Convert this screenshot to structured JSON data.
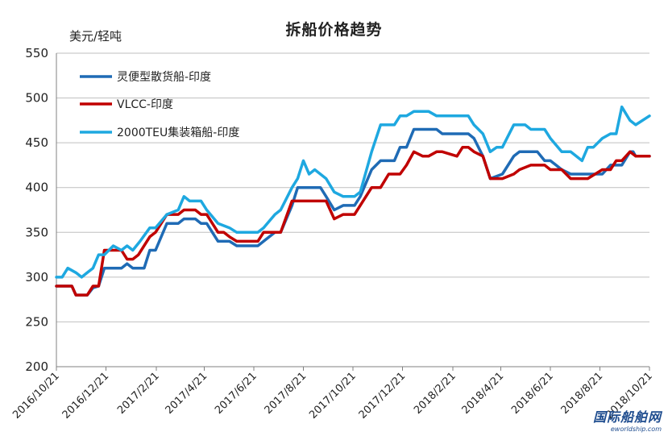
{
  "chart_data": {
    "type": "line",
    "title": "拆船价格趋势",
    "ylabel": "美元/轻吨",
    "xlabel": "",
    "ylim": [
      200,
      550
    ],
    "yticks": [
      200,
      250,
      300,
      350,
      400,
      450,
      500,
      550
    ],
    "xlim": [
      "2016-10-21",
      "2018-10-21"
    ],
    "x_tick_labels": [
      "2016/10/21",
      "2016/12/21",
      "2017/2/21",
      "2017/4/21",
      "2017/6/21",
      "2017/8/21",
      "2017/10/21",
      "2017/12/21",
      "2018/2/21",
      "2018/4/21",
      "2018/6/21",
      "2018/8/21",
      "2018/10/21"
    ],
    "x_tick_dates": [
      "2016-10-21",
      "2016-12-21",
      "2017-02-21",
      "2017-04-21",
      "2017-06-21",
      "2017-08-21",
      "2017-10-21",
      "2017-12-21",
      "2018-02-21",
      "2018-04-21",
      "2018-06-21",
      "2018-08-21",
      "2018-10-21"
    ],
    "grid": "horizontal",
    "legend_position": "top-left",
    "series": [
      {
        "name": "灵便型散货船-印度",
        "color": "#1f6bb5",
        "points": [
          [
            "2016-10-21",
            290
          ],
          [
            "2016-11-09",
            290
          ],
          [
            "2016-11-14",
            280
          ],
          [
            "2016-11-28",
            280
          ],
          [
            "2016-12-05",
            288
          ],
          [
            "2016-12-12",
            290
          ],
          [
            "2016-12-19",
            310
          ],
          [
            "2016-12-30",
            310
          ],
          [
            "2017-01-09",
            310
          ],
          [
            "2017-01-16",
            315
          ],
          [
            "2017-01-23",
            310
          ],
          [
            "2017-02-06",
            310
          ],
          [
            "2017-02-13",
            330
          ],
          [
            "2017-02-20",
            330
          ],
          [
            "2017-03-06",
            360
          ],
          [
            "2017-03-20",
            360
          ],
          [
            "2017-03-27",
            365
          ],
          [
            "2017-04-10",
            365
          ],
          [
            "2017-04-17",
            360
          ],
          [
            "2017-04-24",
            360
          ],
          [
            "2017-05-08",
            340
          ],
          [
            "2017-05-15",
            340
          ],
          [
            "2017-05-22",
            340
          ],
          [
            "2017-05-31",
            335
          ],
          [
            "2017-06-26",
            335
          ],
          [
            "2017-07-03",
            340
          ],
          [
            "2017-07-17",
            350
          ],
          [
            "2017-07-24",
            350
          ],
          [
            "2017-08-07",
            380
          ],
          [
            "2017-08-14",
            400
          ],
          [
            "2017-09-11",
            400
          ],
          [
            "2017-09-18",
            390
          ],
          [
            "2017-09-28",
            375
          ],
          [
            "2017-10-09",
            380
          ],
          [
            "2017-10-23",
            380
          ],
          [
            "2017-10-30",
            390
          ],
          [
            "2017-11-13",
            420
          ],
          [
            "2017-11-24",
            430
          ],
          [
            "2017-12-11",
            430
          ],
          [
            "2017-12-18",
            445
          ],
          [
            "2017-12-26",
            445
          ],
          [
            "2018-01-04",
            465
          ],
          [
            "2018-02-01",
            465
          ],
          [
            "2018-02-08",
            460
          ],
          [
            "2018-03-12",
            460
          ],
          [
            "2018-03-19",
            455
          ],
          [
            "2018-03-30",
            435
          ],
          [
            "2018-04-08",
            410
          ],
          [
            "2018-04-23",
            415
          ],
          [
            "2018-05-07",
            435
          ],
          [
            "2018-05-14",
            440
          ],
          [
            "2018-06-05",
            440
          ],
          [
            "2018-06-14",
            430
          ],
          [
            "2018-06-21",
            430
          ],
          [
            "2018-06-28",
            425
          ],
          [
            "2018-07-05",
            420
          ],
          [
            "2018-07-16",
            415
          ],
          [
            "2018-07-23",
            415
          ],
          [
            "2018-08-01",
            415
          ],
          [
            "2018-08-06",
            415
          ],
          [
            "2018-08-24",
            415
          ],
          [
            "2018-09-03",
            425
          ],
          [
            "2018-09-17",
            425
          ],
          [
            "2018-09-27",
            440
          ],
          [
            "2018-10-01",
            440
          ],
          [
            "2018-10-04",
            435
          ],
          [
            "2018-10-21",
            435
          ]
        ]
      },
      {
        "name": "VLCC-印度",
        "color": "#c00000",
        "points": [
          [
            "2016-10-21",
            290
          ],
          [
            "2016-11-09",
            290
          ],
          [
            "2016-11-14",
            280
          ],
          [
            "2016-11-28",
            280
          ],
          [
            "2016-12-05",
            290
          ],
          [
            "2016-12-12",
            290
          ],
          [
            "2016-12-19",
            330
          ],
          [
            "2016-12-30",
            330
          ],
          [
            "2017-01-09",
            330
          ],
          [
            "2017-01-16",
            320
          ],
          [
            "2017-01-23",
            320
          ],
          [
            "2017-01-30",
            325
          ],
          [
            "2017-02-13",
            345
          ],
          [
            "2017-02-20",
            350
          ],
          [
            "2017-03-06",
            370
          ],
          [
            "2017-03-20",
            370
          ],
          [
            "2017-03-27",
            375
          ],
          [
            "2017-04-10",
            375
          ],
          [
            "2017-04-17",
            370
          ],
          [
            "2017-04-24",
            370
          ],
          [
            "2017-05-08",
            350
          ],
          [
            "2017-05-15",
            350
          ],
          [
            "2017-05-22",
            345
          ],
          [
            "2017-05-31",
            340
          ],
          [
            "2017-06-26",
            340
          ],
          [
            "2017-07-03",
            350
          ],
          [
            "2017-07-24",
            350
          ],
          [
            "2017-08-07",
            385
          ],
          [
            "2017-09-11",
            385
          ],
          [
            "2017-09-18",
            385
          ],
          [
            "2017-09-28",
            365
          ],
          [
            "2017-10-09",
            370
          ],
          [
            "2017-10-23",
            370
          ],
          [
            "2017-10-30",
            380
          ],
          [
            "2017-11-13",
            400
          ],
          [
            "2017-11-24",
            400
          ],
          [
            "2017-12-04",
            415
          ],
          [
            "2017-12-18",
            415
          ],
          [
            "2017-12-26",
            425
          ],
          [
            "2018-01-04",
            440
          ],
          [
            "2018-01-15",
            435
          ],
          [
            "2018-01-22",
            435
          ],
          [
            "2018-02-01",
            440
          ],
          [
            "2018-02-08",
            440
          ],
          [
            "2018-02-26",
            435
          ],
          [
            "2018-03-05",
            445
          ],
          [
            "2018-03-12",
            445
          ],
          [
            "2018-03-19",
            440
          ],
          [
            "2018-03-30",
            435
          ],
          [
            "2018-04-08",
            410
          ],
          [
            "2018-04-23",
            410
          ],
          [
            "2018-05-07",
            415
          ],
          [
            "2018-05-14",
            420
          ],
          [
            "2018-05-28",
            425
          ],
          [
            "2018-06-14",
            425
          ],
          [
            "2018-06-21",
            420
          ],
          [
            "2018-07-05",
            420
          ],
          [
            "2018-07-16",
            410
          ],
          [
            "2018-08-01",
            410
          ],
          [
            "2018-08-06",
            410
          ],
          [
            "2018-08-24",
            420
          ],
          [
            "2018-09-03",
            420
          ],
          [
            "2018-09-10",
            430
          ],
          [
            "2018-09-17",
            430
          ],
          [
            "2018-09-27",
            440
          ],
          [
            "2018-10-04",
            435
          ],
          [
            "2018-10-21",
            435
          ]
        ]
      },
      {
        "name": "2000TEU集装箱船-印度",
        "color": "#1ea8e0",
        "points": [
          [
            "2016-10-21",
            300
          ],
          [
            "2016-10-28",
            300
          ],
          [
            "2016-11-04",
            310
          ],
          [
            "2016-11-14",
            305
          ],
          [
            "2016-11-21",
            300
          ],
          [
            "2016-11-28",
            305
          ],
          [
            "2016-12-05",
            310
          ],
          [
            "2016-12-12",
            325
          ],
          [
            "2016-12-19",
            325
          ],
          [
            "2016-12-30",
            335
          ],
          [
            "2017-01-09",
            330
          ],
          [
            "2017-01-16",
            335
          ],
          [
            "2017-01-23",
            330
          ],
          [
            "2017-02-01",
            340
          ],
          [
            "2017-02-13",
            355
          ],
          [
            "2017-02-20",
            355
          ],
          [
            "2017-03-06",
            370
          ],
          [
            "2017-03-20",
            375
          ],
          [
            "2017-03-27",
            390
          ],
          [
            "2017-04-03",
            385
          ],
          [
            "2017-04-17",
            385
          ],
          [
            "2017-04-24",
            375
          ],
          [
            "2017-05-08",
            360
          ],
          [
            "2017-05-22",
            355
          ],
          [
            "2017-05-31",
            350
          ],
          [
            "2017-06-14",
            350
          ],
          [
            "2017-06-26",
            350
          ],
          [
            "2017-07-03",
            355
          ],
          [
            "2017-07-17",
            370
          ],
          [
            "2017-07-24",
            375
          ],
          [
            "2017-08-07",
            400
          ],
          [
            "2017-08-14",
            410
          ],
          [
            "2017-08-21",
            430
          ],
          [
            "2017-08-28",
            415
          ],
          [
            "2017-09-04",
            420
          ],
          [
            "2017-09-18",
            410
          ],
          [
            "2017-09-28",
            395
          ],
          [
            "2017-10-09",
            390
          ],
          [
            "2017-10-23",
            390
          ],
          [
            "2017-10-30",
            395
          ],
          [
            "2017-11-13",
            440
          ],
          [
            "2017-11-24",
            470
          ],
          [
            "2017-12-11",
            470
          ],
          [
            "2017-12-18",
            480
          ],
          [
            "2017-12-26",
            480
          ],
          [
            "2018-01-04",
            485
          ],
          [
            "2018-01-22",
            485
          ],
          [
            "2018-02-01",
            480
          ],
          [
            "2018-02-08",
            480
          ],
          [
            "2018-03-12",
            480
          ],
          [
            "2018-03-19",
            470
          ],
          [
            "2018-03-30",
            460
          ],
          [
            "2018-04-08",
            440
          ],
          [
            "2018-04-16",
            445
          ],
          [
            "2018-04-23",
            445
          ],
          [
            "2018-05-07",
            470
          ],
          [
            "2018-05-21",
            470
          ],
          [
            "2018-05-28",
            465
          ],
          [
            "2018-06-14",
            465
          ],
          [
            "2018-06-21",
            455
          ],
          [
            "2018-07-05",
            440
          ],
          [
            "2018-07-16",
            440
          ],
          [
            "2018-07-30",
            430
          ],
          [
            "2018-08-06",
            445
          ],
          [
            "2018-08-13",
            445
          ],
          [
            "2018-08-24",
            455
          ],
          [
            "2018-09-03",
            460
          ],
          [
            "2018-09-10",
            460
          ],
          [
            "2018-09-17",
            490
          ],
          [
            "2018-09-27",
            475
          ],
          [
            "2018-10-04",
            470
          ],
          [
            "2018-10-21",
            480
          ]
        ]
      }
    ]
  },
  "watermark": {
    "main": "国际船舶网",
    "sub": "eworldship.com"
  }
}
